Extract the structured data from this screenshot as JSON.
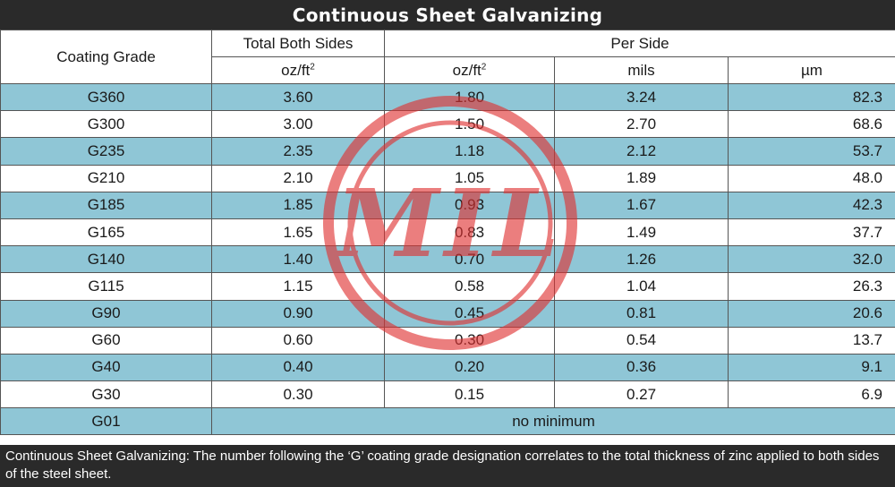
{
  "title": "Continuous Sheet Galvanizing",
  "headers": {
    "coating_grade": "Coating Grade",
    "total_both_sides": "Total Both Sides",
    "per_side": "Per Side",
    "total_unit_base": "oz/ft",
    "per_side_oz_base": "oz/ft",
    "squared": "2",
    "mils": "mils",
    "um": "µm"
  },
  "rows": [
    {
      "grade": "G360",
      "total": "3.60",
      "oz": "1.80",
      "mils": "3.24",
      "um": "82.3"
    },
    {
      "grade": "G300",
      "total": "3.00",
      "oz": "1.50",
      "mils": "2.70",
      "um": "68.6"
    },
    {
      "grade": "G235",
      "total": "2.35",
      "oz": "1.18",
      "mils": "2.12",
      "um": "53.7"
    },
    {
      "grade": "G210",
      "total": "2.10",
      "oz": "1.05",
      "mils": "1.89",
      "um": "48.0"
    },
    {
      "grade": "G185",
      "total": "1.85",
      "oz": "0.93",
      "mils": "1.67",
      "um": "42.3"
    },
    {
      "grade": "G165",
      "total": "1.65",
      "oz": "0.83",
      "mils": "1.49",
      "um": "37.7"
    },
    {
      "grade": "G140",
      "total": "1.40",
      "oz": "0.70",
      "mils": "1.26",
      "um": "32.0"
    },
    {
      "grade": "G115",
      "total": "1.15",
      "oz": "0.58",
      "mils": "1.04",
      "um": "26.3"
    },
    {
      "grade": "G90",
      "total": "0.90",
      "oz": "0.45",
      "mils": "0.81",
      "um": "20.6"
    },
    {
      "grade": "G60",
      "total": "0.60",
      "oz": "0.30",
      "mils": "0.54",
      "um": "13.7"
    },
    {
      "grade": "G40",
      "total": "0.40",
      "oz": "0.20",
      "mils": "0.36",
      "um": "9.1"
    },
    {
      "grade": "G30",
      "total": "0.30",
      "oz": "0.15",
      "mils": "0.27",
      "um": "6.9"
    }
  ],
  "last_row": {
    "grade": "G01",
    "note": "no minimum"
  },
  "footer_text": "Continuous Sheet Galvanizing: The number following the ‘G’ coating grade designation correlates to the total thickness of zinc applied to both sides of the steel sheet.",
  "watermark": {
    "text": "MIL",
    "color": "#e03030"
  },
  "colors": {
    "shade": "#8fc6d6",
    "bar": "#2a2a2a",
    "border": "#555555"
  }
}
